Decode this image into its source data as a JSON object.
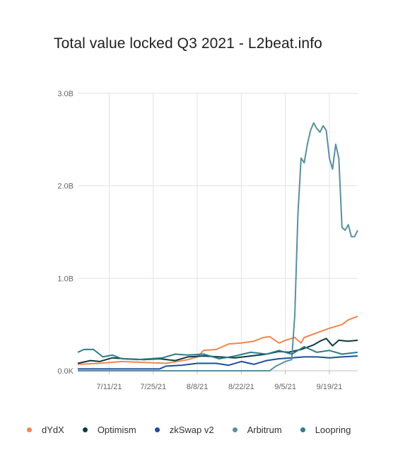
{
  "chart_data": {
    "type": "line",
    "title": "Total value locked Q3 2021 - L2beat.info",
    "xlabel": "",
    "ylabel": "",
    "x_domain": [
      "2021-07-01",
      "2021-09-28"
    ],
    "y_domain": [
      0,
      3.0
    ],
    "y_ticks": [
      {
        "value": 0,
        "label": "0.0K"
      },
      {
        "value": 1.0,
        "label": "1.0B"
      },
      {
        "value": 2.0,
        "label": "2.0B"
      },
      {
        "value": 3.0,
        "label": "3.0B"
      }
    ],
    "x_ticks": [
      {
        "date": "2021-07-11",
        "label": "7/11/21"
      },
      {
        "date": "2021-07-25",
        "label": "7/25/21"
      },
      {
        "date": "2021-08-08",
        "label": "8/8/21"
      },
      {
        "date": "2021-08-22",
        "label": "8/22/21"
      },
      {
        "date": "2021-09-05",
        "label": "9/5/21"
      },
      {
        "date": "2021-09-19",
        "label": "9/19/21"
      }
    ],
    "grid": true,
    "legend_position": "bottom",
    "series": [
      {
        "name": "dYdX",
        "color": "#f0874f",
        "points": [
          [
            "2021-07-01",
            0.07
          ],
          [
            "2021-07-08",
            0.08
          ],
          [
            "2021-07-15",
            0.1
          ],
          [
            "2021-07-22",
            0.09
          ],
          [
            "2021-07-29",
            0.08
          ],
          [
            "2021-08-05",
            0.12
          ],
          [
            "2021-08-08",
            0.15
          ],
          [
            "2021-08-10",
            0.22
          ],
          [
            "2021-08-14",
            0.23
          ],
          [
            "2021-08-18",
            0.29
          ],
          [
            "2021-08-22",
            0.3
          ],
          [
            "2021-08-26",
            0.32
          ],
          [
            "2021-08-29",
            0.36
          ],
          [
            "2021-08-31",
            0.37
          ],
          [
            "2021-09-03",
            0.3
          ],
          [
            "2021-09-05",
            0.33
          ],
          [
            "2021-09-08",
            0.36
          ],
          [
            "2021-09-10",
            0.3
          ],
          [
            "2021-09-11",
            0.36
          ],
          [
            "2021-09-15",
            0.41
          ],
          [
            "2021-09-19",
            0.46
          ],
          [
            "2021-09-23",
            0.5
          ],
          [
            "2021-09-25",
            0.55
          ],
          [
            "2021-09-28",
            0.59
          ]
        ]
      },
      {
        "name": "Optimism",
        "color": "#123a45",
        "points": [
          [
            "2021-07-01",
            0.08
          ],
          [
            "2021-07-05",
            0.11
          ],
          [
            "2021-07-08",
            0.1
          ],
          [
            "2021-07-12",
            0.14
          ],
          [
            "2021-07-16",
            0.13
          ],
          [
            "2021-07-22",
            0.12
          ],
          [
            "2021-07-27",
            0.13
          ],
          [
            "2021-08-01",
            0.11
          ],
          [
            "2021-08-05",
            0.15
          ],
          [
            "2021-08-10",
            0.16
          ],
          [
            "2021-08-15",
            0.15
          ],
          [
            "2021-08-20",
            0.14
          ],
          [
            "2021-08-25",
            0.16
          ],
          [
            "2021-08-30",
            0.18
          ],
          [
            "2021-09-03",
            0.21
          ],
          [
            "2021-09-06",
            0.2
          ],
          [
            "2021-09-10",
            0.23
          ],
          [
            "2021-09-14",
            0.28
          ],
          [
            "2021-09-16",
            0.32
          ],
          [
            "2021-09-18",
            0.35
          ],
          [
            "2021-09-20",
            0.27
          ],
          [
            "2021-09-22",
            0.33
          ],
          [
            "2021-09-25",
            0.32
          ],
          [
            "2021-09-28",
            0.33
          ]
        ]
      },
      {
        "name": "zkSwap v2",
        "color": "#1e4f9a",
        "points": [
          [
            "2021-07-01",
            0.02
          ],
          [
            "2021-07-15",
            0.02
          ],
          [
            "2021-07-27",
            0.02
          ],
          [
            "2021-07-29",
            0.05
          ],
          [
            "2021-08-03",
            0.06
          ],
          [
            "2021-08-08",
            0.08
          ],
          [
            "2021-08-14",
            0.08
          ],
          [
            "2021-08-18",
            0.06
          ],
          [
            "2021-08-22",
            0.1
          ],
          [
            "2021-08-26",
            0.07
          ],
          [
            "2021-08-30",
            0.11
          ],
          [
            "2021-09-03",
            0.13
          ],
          [
            "2021-09-07",
            0.14
          ],
          [
            "2021-09-11",
            0.15
          ],
          [
            "2021-09-15",
            0.15
          ],
          [
            "2021-09-19",
            0.14
          ],
          [
            "2021-09-23",
            0.15
          ],
          [
            "2021-09-28",
            0.16
          ]
        ]
      },
      {
        "name": "Arbitrum",
        "color": "#5a8fa0",
        "points": [
          [
            "2021-07-01",
            0.0
          ],
          [
            "2021-08-31",
            0.0
          ],
          [
            "2021-09-02",
            0.05
          ],
          [
            "2021-09-05",
            0.1
          ],
          [
            "2021-09-07",
            0.12
          ],
          [
            "2021-09-08",
            0.6
          ],
          [
            "2021-09-09",
            1.7
          ],
          [
            "2021-09-10",
            2.3
          ],
          [
            "2021-09-11",
            2.25
          ],
          [
            "2021-09-12",
            2.45
          ],
          [
            "2021-09-13",
            2.6
          ],
          [
            "2021-09-14",
            2.68
          ],
          [
            "2021-09-15",
            2.62
          ],
          [
            "2021-09-16",
            2.58
          ],
          [
            "2021-09-17",
            2.65
          ],
          [
            "2021-09-18",
            2.6
          ],
          [
            "2021-09-19",
            2.3
          ],
          [
            "2021-09-20",
            2.18
          ],
          [
            "2021-09-21",
            2.45
          ],
          [
            "2021-09-22",
            2.3
          ],
          [
            "2021-09-23",
            1.55
          ],
          [
            "2021-09-24",
            1.52
          ],
          [
            "2021-09-25",
            1.58
          ],
          [
            "2021-09-26",
            1.45
          ],
          [
            "2021-09-27",
            1.45
          ],
          [
            "2021-09-28",
            1.52
          ]
        ]
      },
      {
        "name": "Loopring",
        "color": "#2e7d86",
        "points": [
          [
            "2021-07-01",
            0.2
          ],
          [
            "2021-07-03",
            0.23
          ],
          [
            "2021-07-06",
            0.23
          ],
          [
            "2021-07-09",
            0.15
          ],
          [
            "2021-07-12",
            0.17
          ],
          [
            "2021-07-15",
            0.13
          ],
          [
            "2021-07-20",
            0.12
          ],
          [
            "2021-07-24",
            0.13
          ],
          [
            "2021-07-28",
            0.14
          ],
          [
            "2021-08-01",
            0.18
          ],
          [
            "2021-08-05",
            0.17
          ],
          [
            "2021-08-10",
            0.18
          ],
          [
            "2021-08-15",
            0.13
          ],
          [
            "2021-08-20",
            0.16
          ],
          [
            "2021-08-25",
            0.2
          ],
          [
            "2021-08-30",
            0.18
          ],
          [
            "2021-09-03",
            0.22
          ],
          [
            "2021-09-07",
            0.18
          ],
          [
            "2021-09-11",
            0.26
          ],
          [
            "2021-09-15",
            0.2
          ],
          [
            "2021-09-19",
            0.22
          ],
          [
            "2021-09-23",
            0.18
          ],
          [
            "2021-09-28",
            0.2
          ]
        ]
      }
    ]
  }
}
